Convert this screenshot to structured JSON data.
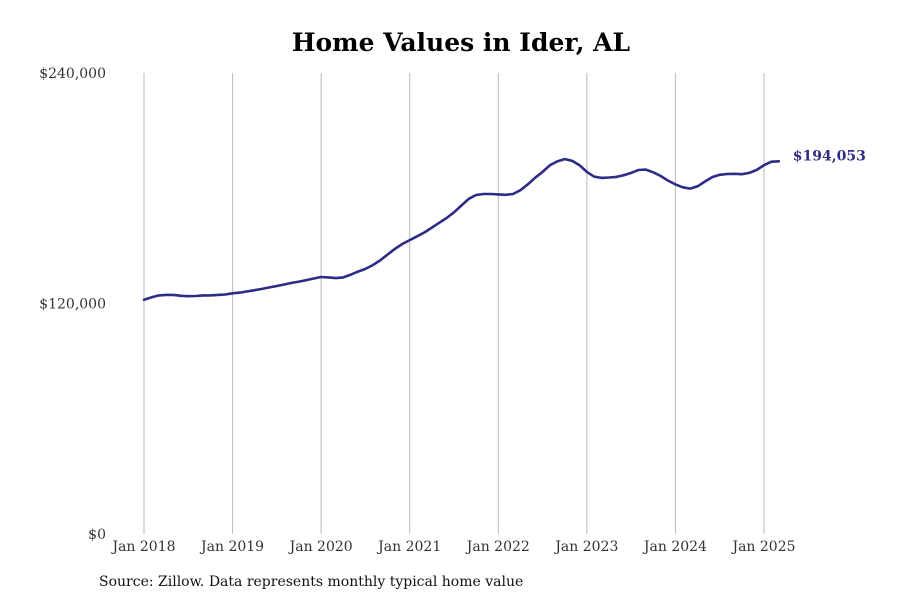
{
  "chart_data": {
    "type": "line",
    "title": "Home Values in Ider, AL",
    "xlabel": "",
    "ylabel": "",
    "ylim": [
      0,
      240000
    ],
    "y_ticks": [
      0,
      120000,
      240000
    ],
    "y_tick_labels": [
      "$0",
      "$120,000",
      "$240,000"
    ],
    "x_ticks": [
      "2018-01",
      "2019-01",
      "2020-01",
      "2021-01",
      "2022-01",
      "2023-01",
      "2024-01",
      "2025-01"
    ],
    "x_tick_labels": [
      "Jan 2018",
      "Jan 2019",
      "Jan 2020",
      "Jan 2021",
      "Jan 2022",
      "Jan 2023",
      "Jan 2024",
      "Jan 2025"
    ],
    "grid": {
      "vertical": true,
      "horizontal": false
    },
    "line_color": "#2e2c85",
    "grid_color": "#bbbbbb",
    "series": [
      {
        "end_label": "$194,053",
        "points": [
          [
            "2018-01",
            122000
          ],
          [
            "2018-02",
            123200
          ],
          [
            "2018-03",
            124200
          ],
          [
            "2018-04",
            124500
          ],
          [
            "2018-05",
            124500
          ],
          [
            "2018-06",
            124000
          ],
          [
            "2018-07",
            123800
          ],
          [
            "2018-08",
            123900
          ],
          [
            "2018-09",
            124200
          ],
          [
            "2018-10",
            124200
          ],
          [
            "2018-11",
            124500
          ],
          [
            "2018-12",
            124700
          ],
          [
            "2019-01",
            125300
          ],
          [
            "2019-02",
            125700
          ],
          [
            "2019-03",
            126300
          ],
          [
            "2019-04",
            126900
          ],
          [
            "2019-05",
            127600
          ],
          [
            "2019-06",
            128400
          ],
          [
            "2019-07",
            129100
          ],
          [
            "2019-08",
            129900
          ],
          [
            "2019-09",
            130700
          ],
          [
            "2019-10",
            131400
          ],
          [
            "2019-11",
            132200
          ],
          [
            "2019-12",
            133000
          ],
          [
            "2020-01",
            133800
          ],
          [
            "2020-02",
            133600
          ],
          [
            "2020-03",
            133200
          ],
          [
            "2020-04",
            133600
          ],
          [
            "2020-05",
            135000
          ],
          [
            "2020-06",
            136600
          ],
          [
            "2020-07",
            138000
          ],
          [
            "2020-08",
            140000
          ],
          [
            "2020-09",
            142500
          ],
          [
            "2020-10",
            145500
          ],
          [
            "2020-11",
            148500
          ],
          [
            "2020-12",
            151000
          ],
          [
            "2021-01",
            153000
          ],
          [
            "2021-02",
            155000
          ],
          [
            "2021-03",
            157000
          ],
          [
            "2021-04",
            159500
          ],
          [
            "2021-05",
            162000
          ],
          [
            "2021-06",
            164500
          ],
          [
            "2021-07",
            167500
          ],
          [
            "2021-08",
            171000
          ],
          [
            "2021-09",
            174500
          ],
          [
            "2021-10",
            176500
          ],
          [
            "2021-11",
            177000
          ],
          [
            "2021-12",
            177000
          ],
          [
            "2022-01",
            176800
          ],
          [
            "2022-02",
            176600
          ],
          [
            "2022-03",
            177000
          ],
          [
            "2022-04",
            179000
          ],
          [
            "2022-05",
            182000
          ],
          [
            "2022-06",
            185500
          ],
          [
            "2022-07",
            188500
          ],
          [
            "2022-08",
            192000
          ],
          [
            "2022-09",
            194000
          ],
          [
            "2022-10",
            195200
          ],
          [
            "2022-11",
            194300
          ],
          [
            "2022-12",
            192000
          ],
          [
            "2023-01",
            188500
          ],
          [
            "2023-02",
            186000
          ],
          [
            "2023-03",
            185400
          ],
          [
            "2023-04",
            185600
          ],
          [
            "2023-05",
            185900
          ],
          [
            "2023-06",
            186800
          ],
          [
            "2023-07",
            188000
          ],
          [
            "2023-08",
            189500
          ],
          [
            "2023-09",
            189700
          ],
          [
            "2023-10",
            188300
          ],
          [
            "2023-11",
            186400
          ],
          [
            "2023-12",
            184000
          ],
          [
            "2024-01",
            182000
          ],
          [
            "2024-02",
            180500
          ],
          [
            "2024-03",
            179800
          ],
          [
            "2024-04",
            181000
          ],
          [
            "2024-05",
            183500
          ],
          [
            "2024-06",
            185800
          ],
          [
            "2024-07",
            187000
          ],
          [
            "2024-08",
            187400
          ],
          [
            "2024-09",
            187500
          ],
          [
            "2024-10",
            187300
          ],
          [
            "2024-11",
            188000
          ],
          [
            "2024-12",
            189500
          ],
          [
            "2025-01",
            192000
          ],
          [
            "2025-02",
            193800
          ],
          [
            "2025-03",
            194053
          ]
        ]
      }
    ]
  },
  "footer": {
    "source": "Source: Zillow. Data represents monthly typical home value"
  }
}
